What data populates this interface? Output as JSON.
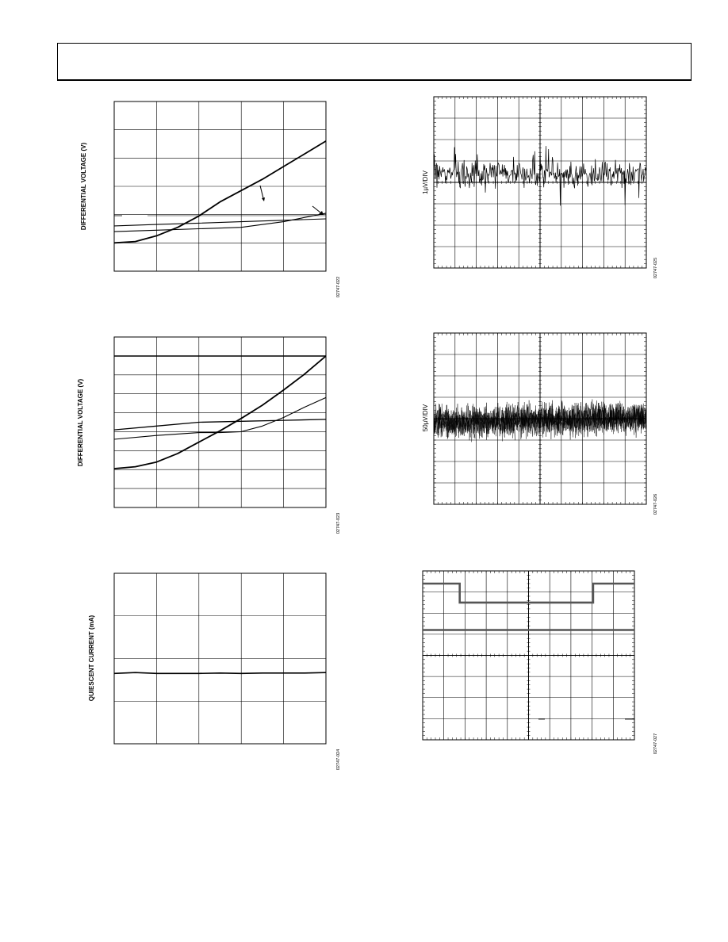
{
  "charts": [
    {
      "ylabel": "DIFFERENTIAL VOLTAGE (V)",
      "code": "02747-022"
    },
    {
      "ylabel": "DIFFERENTIAL VOLTAGE (V)",
      "code": "02747-023"
    },
    {
      "ylabel": "QUIESCENT CURRENT (mA)",
      "code": "02747-024"
    },
    {
      "ylabel": "1µV/DIV",
      "code": "02747-025"
    },
    {
      "ylabel": "50µV/DIV",
      "code": "02747-026"
    },
    {
      "ylabel": "",
      "code": "02747-027"
    }
  ],
  "chart_data": [
    {
      "type": "line",
      "xlim": [
        0,
        5
      ],
      "ylim": [
        0,
        6
      ],
      "series": [
        {
          "x": [
            0,
            0.5,
            1,
            1.5,
            2,
            2.5,
            3,
            3.5,
            4,
            4.5,
            5
          ],
          "y": [
            1.0,
            1.05,
            1.25,
            1.55,
            1.95,
            2.45,
            2.85,
            3.25,
            3.7,
            4.15,
            4.6
          ]
        },
        {
          "x": [
            0,
            1,
            2,
            3,
            4,
            4.5,
            5
          ],
          "y": [
            1.4,
            1.45,
            1.5,
            1.55,
            1.75,
            1.9,
            2.05
          ]
        },
        {
          "x": [
            0,
            1,
            2,
            3,
            4,
            5
          ],
          "y": [
            1.6,
            1.65,
            1.7,
            1.75,
            1.8,
            1.85
          ]
        }
      ]
    },
    {
      "type": "line",
      "xlim": [
        0,
        5
      ],
      "ylim": [
        0,
        9
      ],
      "series": [
        {
          "x": [
            0,
            0.5,
            1,
            1.5,
            2,
            2.5,
            3,
            3.5,
            4,
            4.5,
            5
          ],
          "y": [
            2.05,
            2.15,
            2.4,
            2.85,
            3.45,
            4.05,
            4.7,
            5.4,
            6.2,
            7.05,
            8.0
          ]
        },
        {
          "x": [
            0,
            1,
            2,
            2.5,
            3,
            3.5,
            4,
            4.5,
            5
          ],
          "y": [
            3.6,
            3.8,
            3.95,
            3.95,
            4.0,
            4.3,
            4.75,
            5.3,
            5.8
          ]
        },
        {
          "x": [
            0,
            1,
            2,
            3,
            4,
            5
          ],
          "y": [
            4.1,
            4.3,
            4.5,
            4.55,
            4.6,
            4.65
          ]
        }
      ]
    },
    {
      "type": "line",
      "xlim": [
        0,
        5
      ],
      "ylim": [
        0,
        4
      ],
      "series": [
        {
          "x": [
            0,
            0.5,
            1,
            1.5,
            2,
            2.5,
            3,
            3.5,
            4,
            4.5,
            5
          ],
          "y": [
            1.65,
            1.67,
            1.65,
            1.65,
            1.65,
            1.66,
            1.65,
            1.66,
            1.66,
            1.66,
            1.67
          ]
        }
      ]
    },
    {
      "type": "line",
      "noise": true,
      "divisions": [
        10,
        8
      ]
    },
    {
      "type": "line",
      "noise": true,
      "divisions": [
        10,
        8
      ]
    },
    {
      "type": "line",
      "divisions": [
        10,
        8
      ],
      "series": [
        {
          "x": [
            0,
            1.75,
            1.75,
            8.05,
            8.05,
            10
          ],
          "y": [
            7.4,
            7.4,
            6.5,
            6.5,
            7.4,
            7.4
          ]
        },
        {
          "x": [
            0,
            10
          ],
          "y": [
            5.2,
            5.2
          ]
        }
      ]
    }
  ]
}
